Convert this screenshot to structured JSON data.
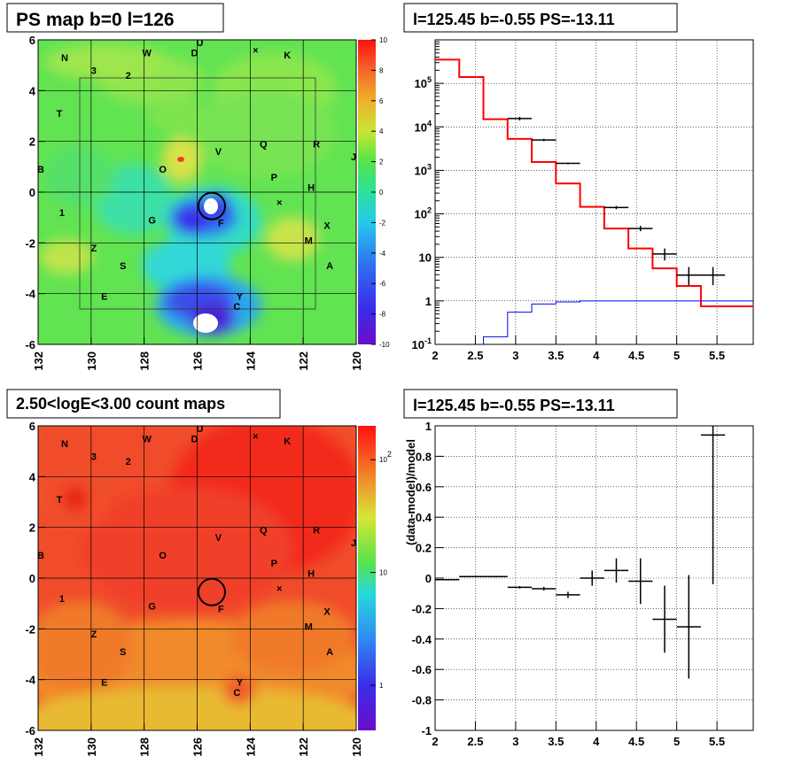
{
  "chart_data": [
    {
      "type": "heatmap",
      "title": "PS map b=0 l=126",
      "xlim": [
        132,
        120
      ],
      "ylim": [
        -6,
        6
      ],
      "x_ticks": [
        "132",
        "130",
        "128",
        "126",
        "124",
        "122",
        "120"
      ],
      "y_ticks": [
        "6",
        "4",
        "2",
        "0",
        "-2",
        "-4",
        "-6"
      ],
      "colorbar_range": [
        -10,
        10
      ],
      "colorbar_ticks": [
        "10",
        "8",
        "6",
        "4",
        "2",
        "0",
        "-2",
        "-4",
        "-6",
        "-8",
        "-10"
      ],
      "source_labels": [
        {
          "t": "U",
          "l": 125.9,
          "b": 5.9
        },
        {
          "t": "W",
          "l": 127.9,
          "b": 5.5
        },
        {
          "t": "D",
          "l": 126.1,
          "b": 5.5
        },
        {
          "t": "×",
          "l": 123.8,
          "b": 5.6
        },
        {
          "t": "K",
          "l": 122.6,
          "b": 5.4
        },
        {
          "t": "N",
          "l": 131.0,
          "b": 5.3
        },
        {
          "t": "3",
          "l": 129.9,
          "b": 4.8
        },
        {
          "t": "2",
          "l": 128.6,
          "b": 4.6
        },
        {
          "t": "T",
          "l": 131.2,
          "b": 3.1
        },
        {
          "t": "Q",
          "l": 123.5,
          "b": 1.9
        },
        {
          "t": "R",
          "l": 121.5,
          "b": 1.9
        },
        {
          "t": "J",
          "l": 120.1,
          "b": 1.4
        },
        {
          "t": "V",
          "l": 125.2,
          "b": 1.6
        },
        {
          "t": "B",
          "l": 131.9,
          "b": 0.9
        },
        {
          "t": "O",
          "l": 127.3,
          "b": 0.9
        },
        {
          "t": "P",
          "l": 123.1,
          "b": 0.6
        },
        {
          "t": "H",
          "l": 121.7,
          "b": 0.2
        },
        {
          "t": "×",
          "l": 122.9,
          "b": -0.4
        },
        {
          "t": "1",
          "l": 131.1,
          "b": -0.8
        },
        {
          "t": "G",
          "l": 127.7,
          "b": -1.1
        },
        {
          "t": "F",
          "l": 125.1,
          "b": -1.2
        },
        {
          "t": "X",
          "l": 121.1,
          "b": -1.3
        },
        {
          "t": "M",
          "l": 121.8,
          "b": -1.9
        },
        {
          "t": "Z",
          "l": 129.9,
          "b": -2.2
        },
        {
          "t": "S",
          "l": 128.8,
          "b": -2.9
        },
        {
          "t": "A",
          "l": 121.0,
          "b": -2.9
        },
        {
          "t": "E",
          "l": 129.5,
          "b": -4.1
        },
        {
          "t": "Y",
          "l": 124.4,
          "b": -4.1
        },
        {
          "t": "C",
          "l": 124.5,
          "b": -4.5
        }
      ],
      "circle_center": {
        "l": 125.45,
        "b": -0.55
      }
    },
    {
      "type": "line",
      "title": "l=125.45 b=-0.55 PS=-13.11",
      "xlim": [
        2,
        5.95
      ],
      "ylim": [
        0.1,
        1000000
      ],
      "log_y": true,
      "x_ticks": [
        "2",
        "2.5",
        "3",
        "3.5",
        "4",
        "4.5",
        "5",
        "5.5"
      ],
      "y_ticks": [
        "10^1",
        "1",
        "10",
        "10^2",
        "10^3",
        "10^4",
        "10^5"
      ],
      "series": [
        {
          "color": "#ff0000",
          "bin_edges": [
            2.0,
            2.3,
            2.6,
            2.9,
            3.2,
            3.5,
            3.8,
            4.1,
            4.4,
            4.7,
            5.0,
            5.3,
            5.6,
            5.95
          ],
          "values": [
            350000,
            140000,
            15000,
            5300,
            1560,
            500,
            145,
            46,
            16,
            5.6,
            2.2,
            0.75,
            0.75
          ]
        },
        {
          "color": "#0000ff",
          "bin_edges": [
            2.0,
            2.3,
            2.6,
            2.9,
            3.2,
            3.5,
            3.8,
            4.1,
            4.4,
            4.7,
            5.0,
            5.3,
            5.6,
            5.95
          ],
          "values": [
            0.03,
            0.08,
            0.15,
            0.55,
            0.85,
            0.95,
            1.0,
            1.0,
            1.0,
            1.0,
            1.0,
            1.0,
            1.0
          ]
        },
        {
          "color": "#000000",
          "points": [
            {
              "x": 3.05,
              "xw": 0.15,
              "y": 15500,
              "lo": 14000,
              "hi": 17000
            },
            {
              "x": 3.35,
              "xw": 0.15,
              "y": 5000,
              "lo": 4700,
              "hi": 5300
            },
            {
              "x": 3.65,
              "xw": 0.15,
              "y": 1450,
              "lo": 1380,
              "hi": 1520
            },
            {
              "x": 4.25,
              "xw": 0.15,
              "y": 140,
              "lo": 128,
              "hi": 152
            },
            {
              "x": 4.55,
              "xw": 0.15,
              "y": 46,
              "lo": 40,
              "hi": 53
            },
            {
              "x": 4.85,
              "xw": 0.15,
              "y": 12,
              "lo": 8.5,
              "hi": 16
            },
            {
              "x": 5.15,
              "xw": 0.15,
              "y": 3.9,
              "lo": 2.3,
              "hi": 6
            },
            {
              "x": 5.45,
              "xw": 0.15,
              "y": 3.9,
              "lo": 2.3,
              "hi": 6
            }
          ]
        }
      ]
    },
    {
      "type": "heatmap",
      "title": "2.50<logE<3.00 count maps",
      "xlim": [
        132,
        120
      ],
      "ylim": [
        -6,
        6
      ],
      "x_ticks": [
        "132",
        "130",
        "128",
        "126",
        "124",
        "122",
        "120"
      ],
      "y_ticks": [
        "6",
        "4",
        "2",
        "0",
        "-2",
        "-4",
        "-6"
      ],
      "colorbar_ticks": [
        "10^2",
        "10",
        "1"
      ],
      "circle_center": {
        "l": 125.45,
        "b": -0.55
      }
    },
    {
      "type": "scatter",
      "title": "l=125.45 b=-0.55 PS=-13.11",
      "ylabel": "(data-model)/model",
      "xlim": [
        2,
        5.95
      ],
      "ylim": [
        -1,
        1
      ],
      "x_ticks": [
        "2",
        "2.5",
        "3",
        "3.5",
        "4",
        "4.5",
        "5",
        "5.5"
      ],
      "y_ticks": [
        "1",
        "0.8",
        "0.6",
        "0.4",
        "0.2",
        "0",
        "-0.2",
        "-0.4",
        "-0.6",
        "-0.8",
        "-1"
      ],
      "points": [
        {
          "x": 2.15,
          "xw": 0.15,
          "y": -0.01,
          "e": 0.003
        },
        {
          "x": 2.45,
          "xw": 0.15,
          "y": 0.01,
          "e": 0.004
        },
        {
          "x": 2.75,
          "xw": 0.15,
          "y": 0.01,
          "e": 0.005
        },
        {
          "x": 3.05,
          "xw": 0.15,
          "y": -0.06,
          "e": 0.008
        },
        {
          "x": 3.35,
          "xw": 0.15,
          "y": -0.07,
          "e": 0.012
        },
        {
          "x": 3.65,
          "xw": 0.15,
          "y": -0.11,
          "e": 0.02
        },
        {
          "x": 3.95,
          "xw": 0.15,
          "y": 0.0,
          "e": 0.05
        },
        {
          "x": 4.25,
          "xw": 0.15,
          "y": 0.05,
          "e": 0.08
        },
        {
          "x": 4.55,
          "xw": 0.15,
          "y": -0.02,
          "e": 0.15
        },
        {
          "x": 4.85,
          "xw": 0.15,
          "y": -0.27,
          "e": 0.22
        },
        {
          "x": 5.15,
          "xw": 0.15,
          "y": -0.32,
          "e": 0.34
        },
        {
          "x": 5.45,
          "xw": 0.15,
          "y": 0.94,
          "e": 0.98
        }
      ]
    }
  ]
}
